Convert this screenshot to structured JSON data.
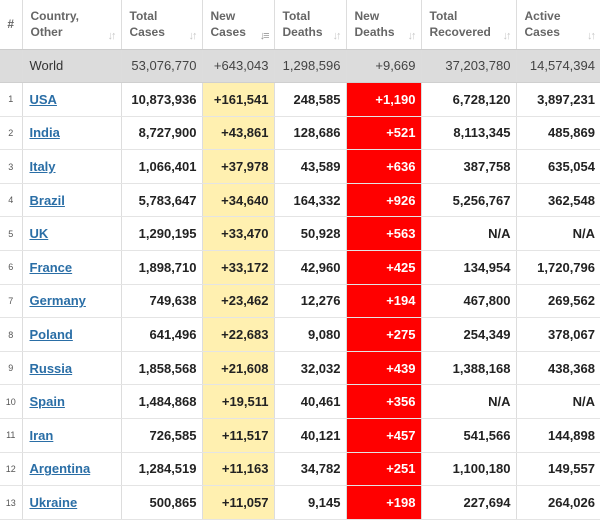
{
  "table": {
    "headers": {
      "idx": "#",
      "country": [
        "Country,",
        "Other"
      ],
      "total_cases": [
        "Total",
        "Cases"
      ],
      "new_cases": [
        "New",
        "Cases"
      ],
      "total_deaths": [
        "Total",
        "Deaths"
      ],
      "new_deaths": [
        "New",
        "Deaths"
      ],
      "total_recovered": [
        "Total",
        "Recovered"
      ],
      "active_cases": [
        "Active",
        "Cases"
      ]
    },
    "world": {
      "country": "World",
      "total_cases": "53,076,770",
      "new_cases": "+643,043",
      "total_deaths": "1,298,596",
      "new_deaths": "+9,669",
      "total_recovered": "37,203,780",
      "active_cases": "14,574,394"
    },
    "rows": [
      {
        "idx": "1",
        "country": "USA",
        "total_cases": "10,873,936",
        "new_cases": "+161,541",
        "total_deaths": "248,585",
        "new_deaths": "+1,190",
        "total_recovered": "6,728,120",
        "active_cases": "3,897,231"
      },
      {
        "idx": "2",
        "country": "India",
        "total_cases": "8,727,900",
        "new_cases": "+43,861",
        "total_deaths": "128,686",
        "new_deaths": "+521",
        "total_recovered": "8,113,345",
        "active_cases": "485,869"
      },
      {
        "idx": "3",
        "country": "Italy",
        "total_cases": "1,066,401",
        "new_cases": "+37,978",
        "total_deaths": "43,589",
        "new_deaths": "+636",
        "total_recovered": "387,758",
        "active_cases": "635,054"
      },
      {
        "idx": "4",
        "country": "Brazil",
        "total_cases": "5,783,647",
        "new_cases": "+34,640",
        "total_deaths": "164,332",
        "new_deaths": "+926",
        "total_recovered": "5,256,767",
        "active_cases": "362,548"
      },
      {
        "idx": "5",
        "country": "UK",
        "total_cases": "1,290,195",
        "new_cases": "+33,470",
        "total_deaths": "50,928",
        "new_deaths": "+563",
        "total_recovered": "N/A",
        "active_cases": "N/A"
      },
      {
        "idx": "6",
        "country": "France",
        "total_cases": "1,898,710",
        "new_cases": "+33,172",
        "total_deaths": "42,960",
        "new_deaths": "+425",
        "total_recovered": "134,954",
        "active_cases": "1,720,796"
      },
      {
        "idx": "7",
        "country": "Germany",
        "total_cases": "749,638",
        "new_cases": "+23,462",
        "total_deaths": "12,276",
        "new_deaths": "+194",
        "total_recovered": "467,800",
        "active_cases": "269,562"
      },
      {
        "idx": "8",
        "country": "Poland",
        "total_cases": "641,496",
        "new_cases": "+22,683",
        "total_deaths": "9,080",
        "new_deaths": "+275",
        "total_recovered": "254,349",
        "active_cases": "378,067"
      },
      {
        "idx": "9",
        "country": "Russia",
        "total_cases": "1,858,568",
        "new_cases": "+21,608",
        "total_deaths": "32,032",
        "new_deaths": "+439",
        "total_recovered": "1,388,168",
        "active_cases": "438,368"
      },
      {
        "idx": "10",
        "country": "Spain",
        "total_cases": "1,484,868",
        "new_cases": "+19,511",
        "total_deaths": "40,461",
        "new_deaths": "+356",
        "total_recovered": "N/A",
        "active_cases": "N/A"
      },
      {
        "idx": "11",
        "country": "Iran",
        "total_cases": "726,585",
        "new_cases": "+11,517",
        "total_deaths": "40,121",
        "new_deaths": "+457",
        "total_recovered": "541,566",
        "active_cases": "144,898"
      },
      {
        "idx": "12",
        "country": "Argentina",
        "total_cases": "1,284,519",
        "new_cases": "+11,163",
        "total_deaths": "34,782",
        "new_deaths": "+251",
        "total_recovered": "1,100,180",
        "active_cases": "149,557"
      },
      {
        "idx": "13",
        "country": "Ukraine",
        "total_cases": "500,865",
        "new_cases": "+11,057",
        "total_deaths": "9,145",
        "new_deaths": "+198",
        "total_recovered": "227,694",
        "active_cases": "264,026"
      }
    ]
  },
  "colors": {
    "new_cases_bg": "#fff0b0",
    "new_deaths_bg": "#ff0000",
    "world_row_bg": "#dcdcdc",
    "link": "#2a6ea6"
  },
  "icons": {
    "sort": "sort-arrows-icon",
    "sort_active": "sort-desc-icon"
  },
  "sort": {
    "column": "new_cases",
    "direction": "desc"
  }
}
